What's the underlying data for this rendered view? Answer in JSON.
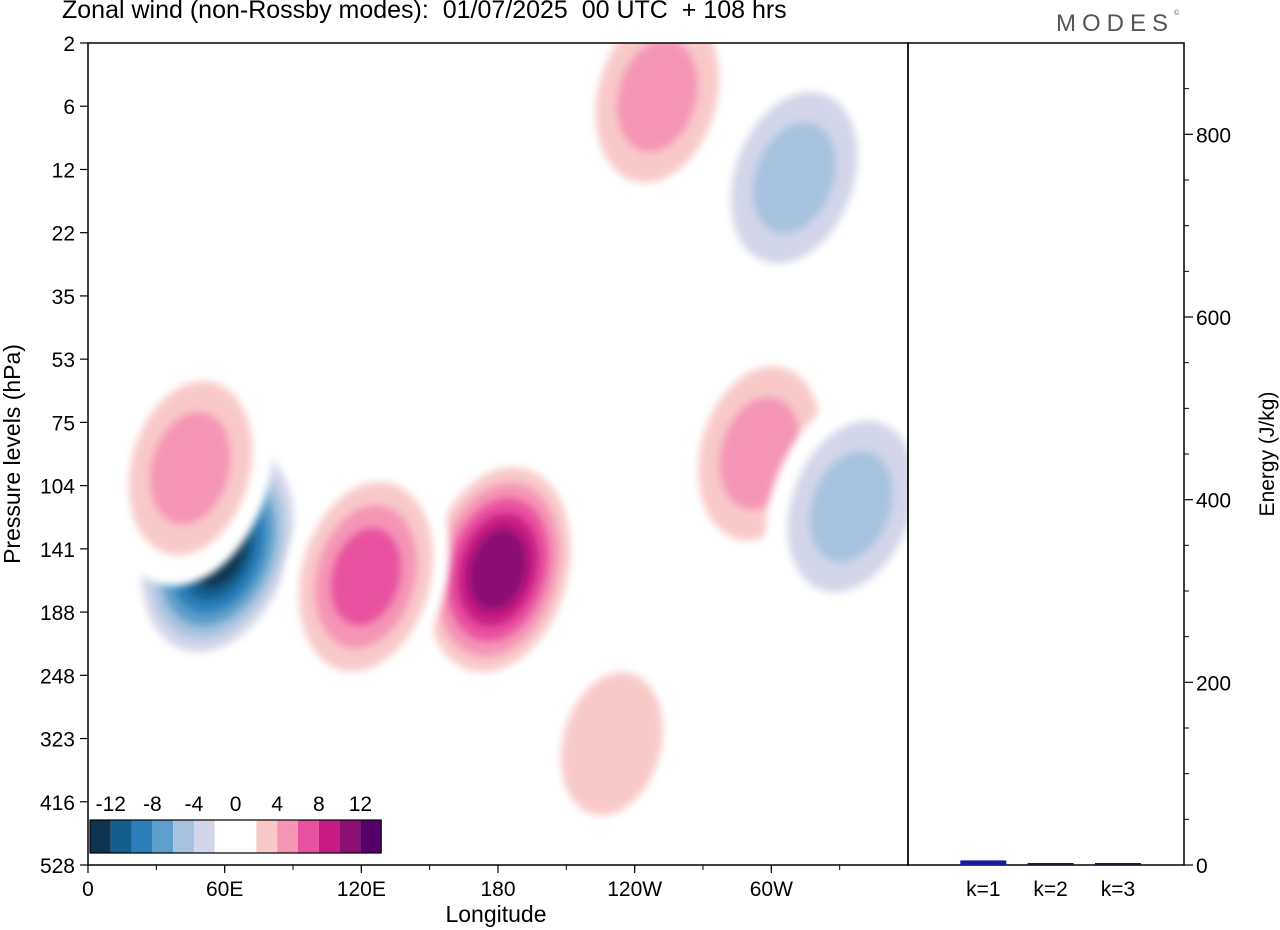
{
  "title": "Zonal wind (non-Rossby modes):  01/07/2025  00 UTC  + 108 hrs",
  "logo": {
    "text": "MODES",
    "mark": "©"
  },
  "chart_data": [
    {
      "type": "heatmap",
      "xlabel": "Longitude",
      "ylabel": "Pressure levels (hPa)",
      "x_ticks": [
        "0",
        "60E",
        "120E",
        "180",
        "120W",
        "60W"
      ],
      "y_ticks": [
        "2",
        "6",
        "12",
        "22",
        "35",
        "53",
        "75",
        "104",
        "141",
        "188",
        "248",
        "323",
        "416",
        "528"
      ],
      "colorbar": {
        "labels": [
          "-12",
          "-8",
          "-4",
          "0",
          "4",
          "8",
          "12"
        ],
        "colors": [
          "#0c3450",
          "#145f8e",
          "#2c7fb8",
          "#5d9ecb",
          "#a6c2de",
          "#d3d6e8",
          "#ffffff",
          "#ffffff",
          "#f9c9c9",
          "#f495b6",
          "#e8519e",
          "#c61b84",
          "#8c0f73",
          "#55006a"
        ]
      },
      "features": [
        {
          "x_lon": 57,
          "y_level": 141,
          "value": -14
        },
        {
          "x_lon": 180,
          "y_level": 155,
          "value": 12
        },
        {
          "x_lon": 122,
          "y_level": 160,
          "value": 9
        },
        {
          "x_lon": 45,
          "y_level": 95,
          "value": 7
        },
        {
          "x_lon": -65,
          "y_level": 88,
          "value": 6
        },
        {
          "x_lon": -25,
          "y_level": 115,
          "value": -6
        },
        {
          "x_lon": -50,
          "y_level": 13,
          "value": -6
        },
        {
          "x_lon": -110,
          "y_level": 5,
          "value": 6
        },
        {
          "x_lon": -130,
          "y_level": 330,
          "value": 5
        }
      ]
    },
    {
      "type": "bar",
      "ylabel": "Energy (J/kg)",
      "categories": [
        "k=1",
        "k=2",
        "k=3"
      ],
      "values": [
        5,
        2,
        1
      ],
      "ylim": [
        0,
        900
      ],
      "y_ticks": [
        0,
        200,
        400,
        600,
        800
      ],
      "colors": [
        "#1a1a9e",
        "#1a1a3a",
        "#1a1a3a"
      ]
    }
  ]
}
